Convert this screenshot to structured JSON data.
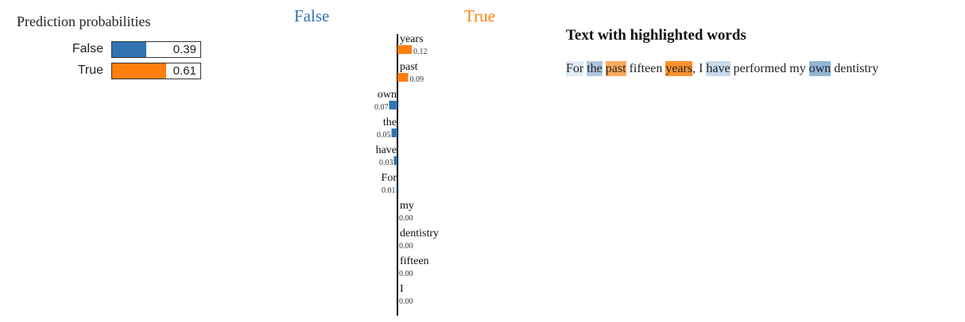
{
  "probabilities": {
    "title": "Prediction probabilities",
    "rows": [
      {
        "label": "False",
        "value": 0.39,
        "display": "0.39",
        "color": "#3274b2"
      },
      {
        "label": "True",
        "value": 0.61,
        "display": "0.61",
        "color": "#ff7f0e"
      }
    ]
  },
  "chart_data": {
    "type": "bar",
    "class_labels": {
      "negative": "False",
      "positive": "True"
    },
    "colors": {
      "negative": "#3274b2",
      "positive": "#ff7f0e"
    },
    "features": [
      {
        "word": "years",
        "value": 0.12,
        "display": "0.12"
      },
      {
        "word": "past",
        "value": 0.09,
        "display": "0.09"
      },
      {
        "word": "own",
        "value": -0.07,
        "display": "0.07"
      },
      {
        "word": "the",
        "value": -0.05,
        "display": "0.05"
      },
      {
        "word": "have",
        "value": -0.03,
        "display": "0.03"
      },
      {
        "word": "For",
        "value": -0.01,
        "display": "0.01"
      },
      {
        "word": "my",
        "value": 0.0,
        "display": "0.00"
      },
      {
        "word": "dentistry",
        "value": -0.0,
        "display": "0.00"
      },
      {
        "word": "fifteen",
        "value": 0.0,
        "display": "0.00"
      },
      {
        "word": "I",
        "value": 0.0,
        "display": "0.00"
      }
    ]
  },
  "highlight": {
    "title": "Text with highlighted words",
    "tokens": [
      {
        "text": "For",
        "weight": -0.01
      },
      {
        "text": " ",
        "weight": null
      },
      {
        "text": "the",
        "weight": -0.05
      },
      {
        "text": " ",
        "weight": null
      },
      {
        "text": "past",
        "weight": 0.09
      },
      {
        "text": " fifteen ",
        "weight": null
      },
      {
        "text": "years",
        "weight": 0.12
      },
      {
        "text": ", I ",
        "weight": null
      },
      {
        "text": "have",
        "weight": -0.03
      },
      {
        "text": " performed my ",
        "weight": null
      },
      {
        "text": "own",
        "weight": -0.07
      },
      {
        "text": " dentistry",
        "weight": null
      }
    ]
  }
}
